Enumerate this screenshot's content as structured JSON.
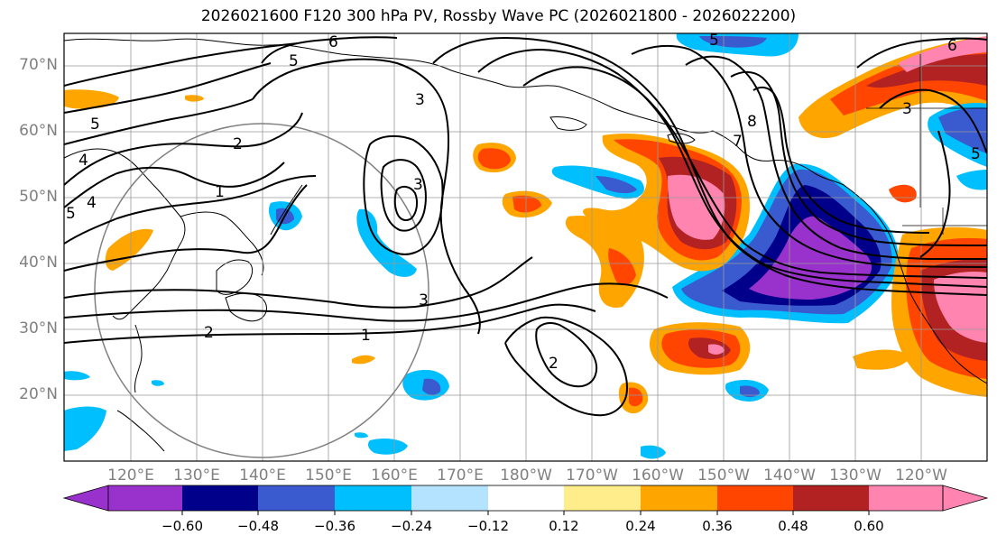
{
  "title": "2026021600 F120 300 hPa PV, Rossby Wave PC (2026021800 - 2026022200)",
  "lat_labels": [
    "70°N",
    "60°N",
    "50°N",
    "40°N",
    "30°N",
    "20°N"
  ],
  "lon_labels": [
    "120°E",
    "130°E",
    "140°E",
    "150°E",
    "160°E",
    "170°E",
    "180°W",
    "170°W",
    "160°W",
    "150°W",
    "140°W",
    "130°W",
    "120°W"
  ],
  "colorbar": {
    "ticks": [
      "−0.60",
      "−0.48",
      "−0.36",
      "−0.24",
      "−0.12",
      "0.12",
      "0.24",
      "0.36",
      "0.48",
      "0.60"
    ],
    "colors": [
      "#9932cc",
      "#00008b",
      "#3a5bcf",
      "#00bfff",
      "#b3e3ff",
      "#ffffff",
      "#ffec8b",
      "#ffa500",
      "#ff4500",
      "#b22222",
      "#ff85b0"
    ]
  },
  "contour_labels": [
    "6",
    "5",
    "5",
    "4",
    "5",
    "4",
    "3",
    "2",
    "1",
    "3",
    "3",
    "2",
    "1",
    "2",
    "5",
    "8",
    "7",
    "6",
    "3",
    "5"
  ]
}
